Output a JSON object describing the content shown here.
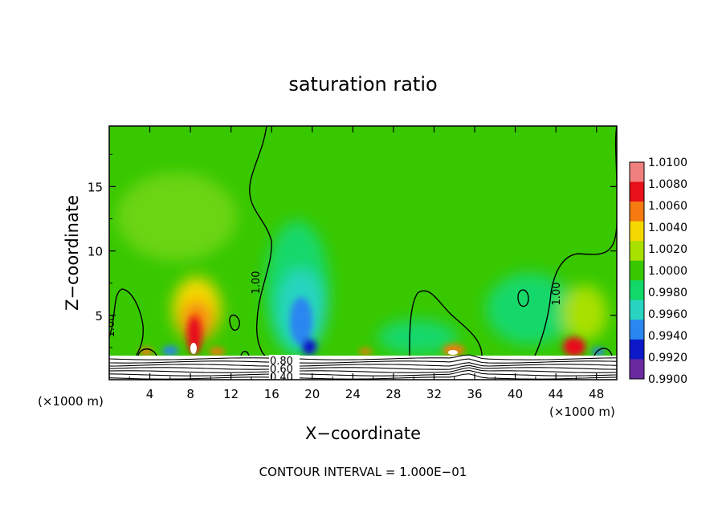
{
  "chart_data": {
    "type": "heatmap",
    "title": "saturation ratio",
    "xlabel": "X−coordinate",
    "ylabel": "Z−coordinate",
    "x_unit_left": "(×1000 m)",
    "x_unit_right": "(×1000 m)",
    "footer": "CONTOUR INTERVAL = 1.000E−01",
    "xlim": [
      0,
      50
    ],
    "ylim": [
      0,
      19.7
    ],
    "x_ticks": [
      4,
      8,
      12,
      16,
      20,
      24,
      28,
      32,
      36,
      40,
      44,
      48
    ],
    "y_ticks": [
      5,
      10,
      15
    ],
    "colorbar": {
      "levels": [
        "1.0100",
        "1.0080",
        "1.0060",
        "1.0040",
        "1.0020",
        "1.0000",
        "0.9980",
        "0.9960",
        "0.9940",
        "0.9920",
        "0.9900"
      ],
      "colors": [
        "#f08080",
        "#e8101a",
        "#f57a10",
        "#f5d800",
        "#a8e000",
        "#38c800",
        "#12d86a",
        "#28d4c0",
        "#2a86f0",
        "#0d18c8",
        "#6a2aa0"
      ]
    },
    "contour_labels": [
      {
        "text": "1.00",
        "x": 0.5,
        "z": 4.5
      },
      {
        "text": "1.00",
        "x": 14.6,
        "z": 7.5
      },
      {
        "text": "1.00",
        "x": 44.7,
        "z": 6.8
      },
      {
        "text": "0.80",
        "x": 17.6,
        "z": 1.5
      },
      {
        "text": "0.60",
        "x": 17.6,
        "z": 0.9
      },
      {
        "text": "0.40",
        "x": 17.6,
        "z": 0.3
      }
    ],
    "field_features": [
      {
        "kind": "moist",
        "x": 8.5,
        "z": 3.3,
        "value": 1.01
      },
      {
        "kind": "moist",
        "x": 9.0,
        "z": 5.5,
        "value": 1.004
      },
      {
        "kind": "moist",
        "x": 46.0,
        "z": 2.6,
        "value": 1.008
      },
      {
        "kind": "moist",
        "x": 35.0,
        "z": 2.4,
        "value": 1.006
      },
      {
        "kind": "dry",
        "x": 18.5,
        "z": 5.0,
        "value": 0.9945
      },
      {
        "kind": "dry",
        "x": 18.0,
        "z": 8.0,
        "value": 0.997
      },
      {
        "kind": "dry",
        "x": 42.0,
        "z": 4.5,
        "value": 0.998
      }
    ]
  }
}
